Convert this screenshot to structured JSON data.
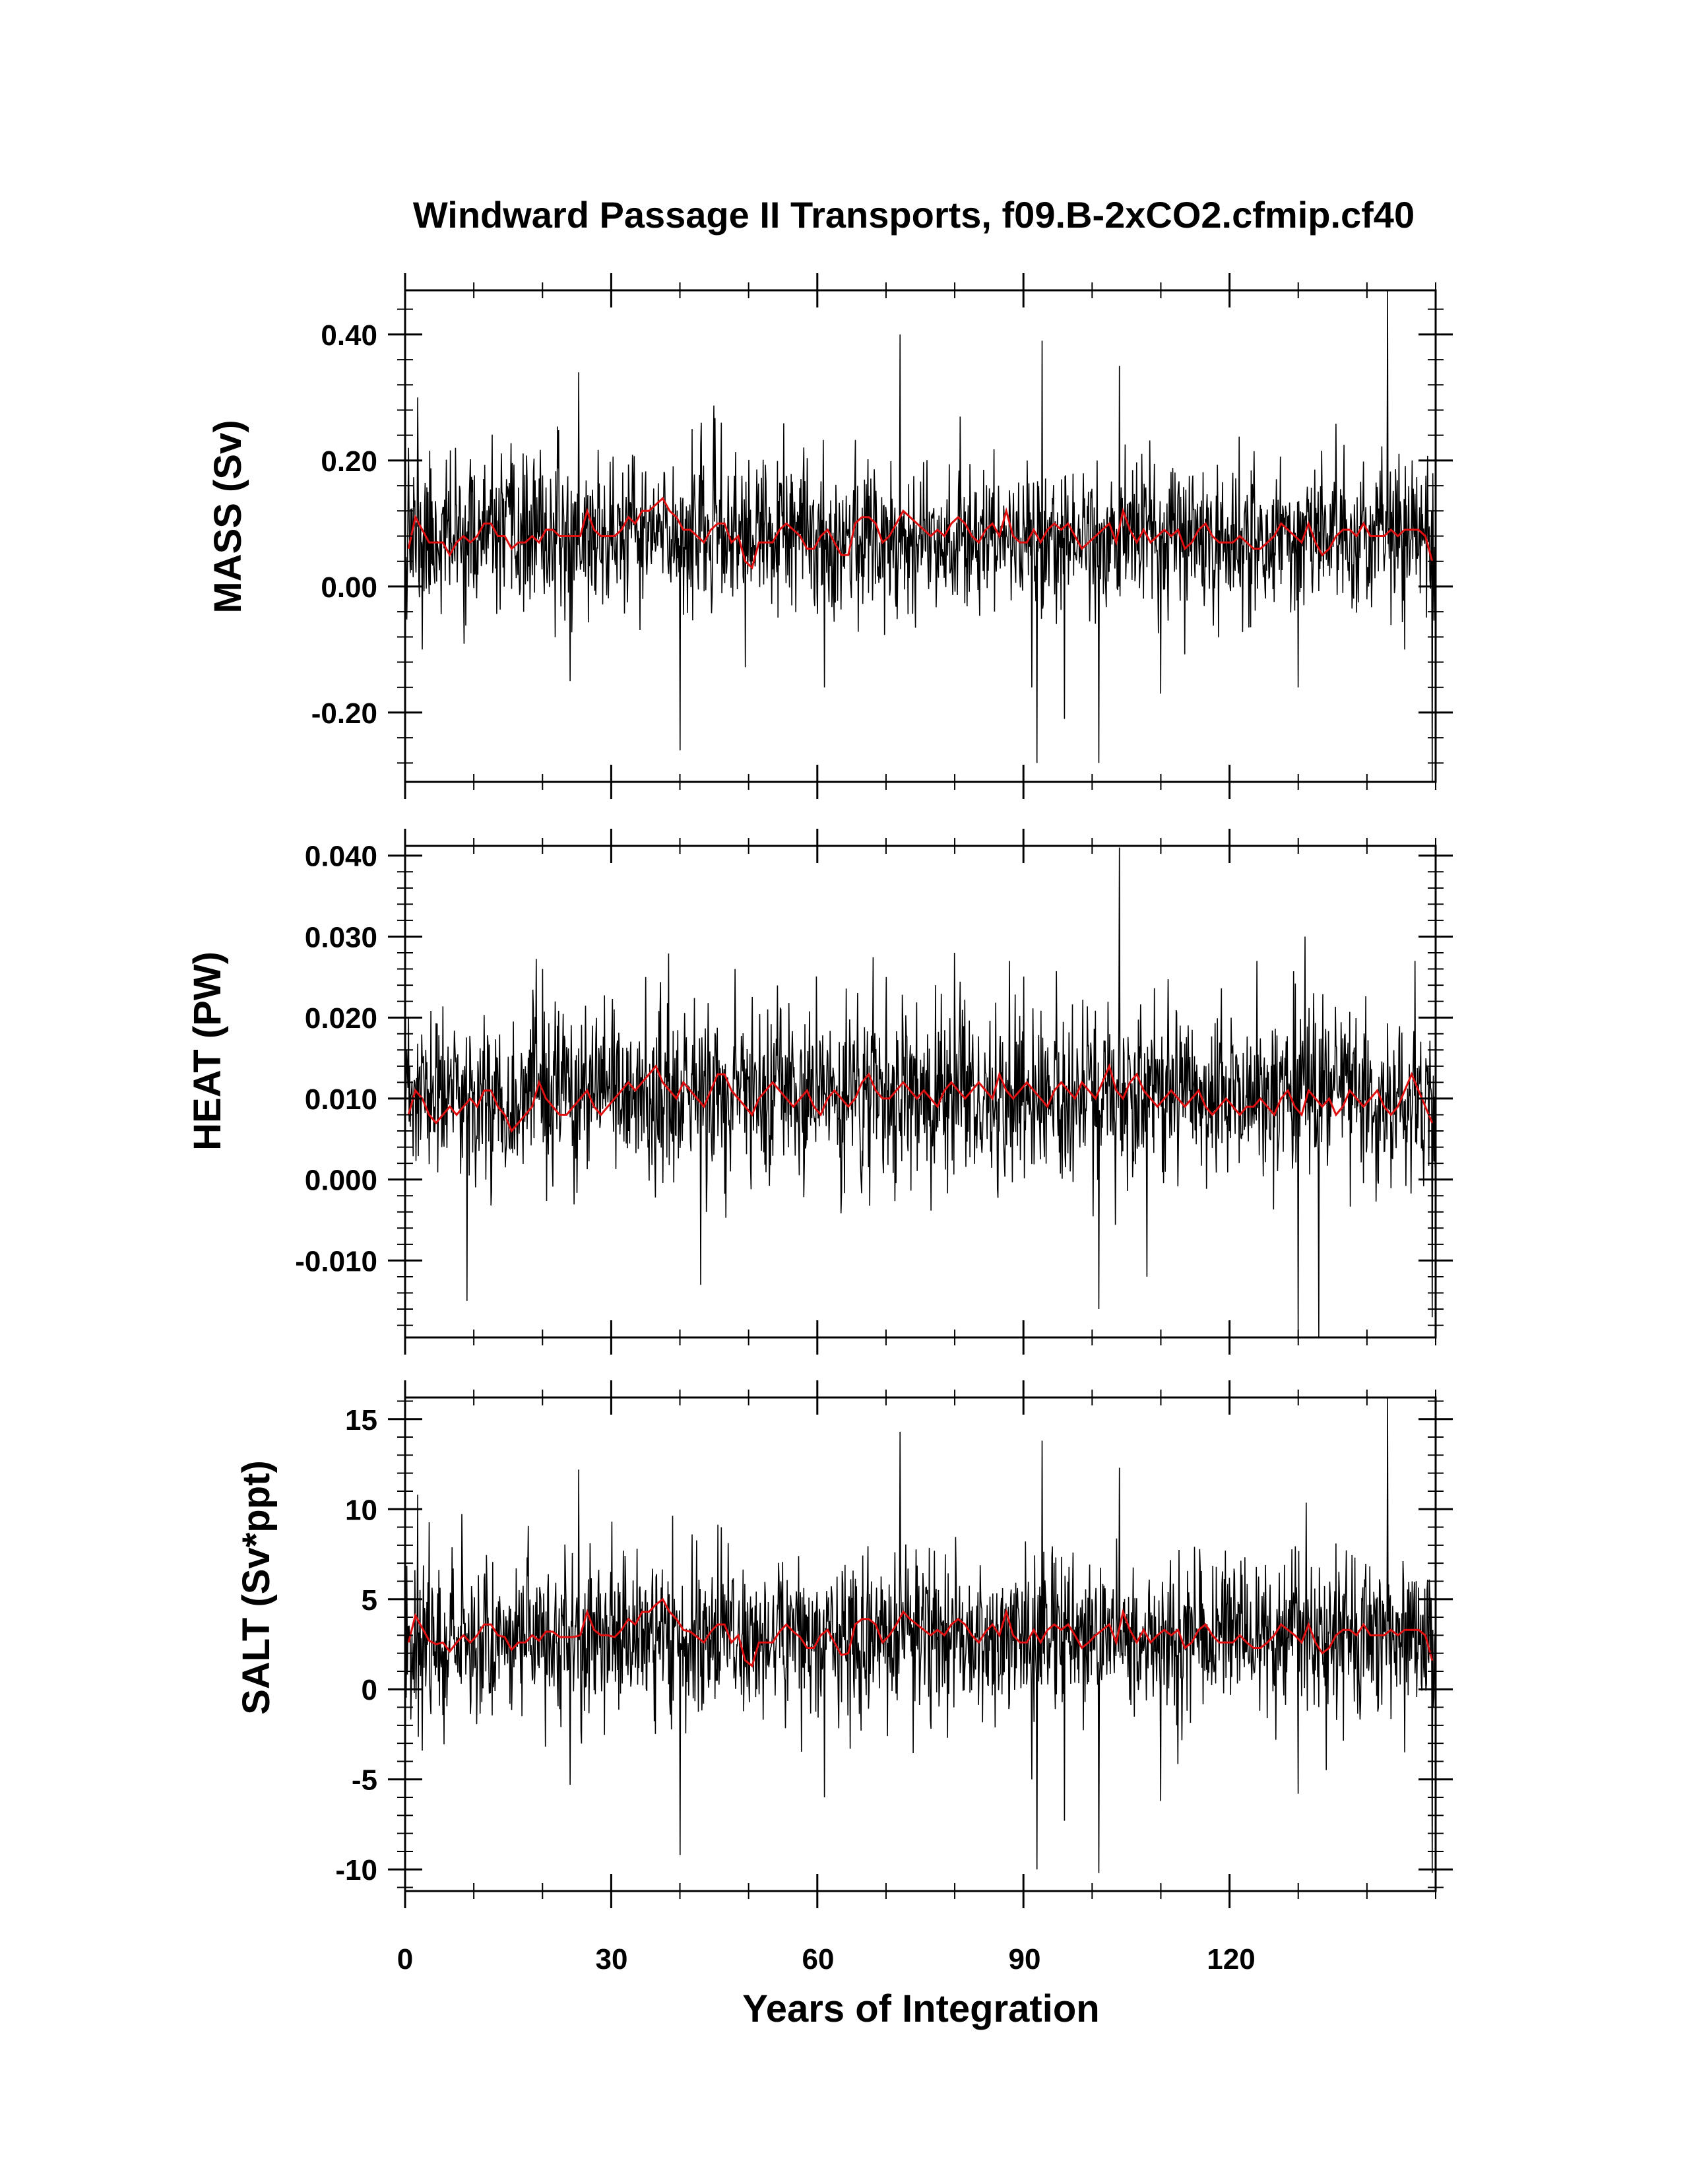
{
  "figure": {
    "title": "Windward Passage II Transports, f09.B-2xCO2.cfmip.cf40",
    "xlabel": "Years of Integration",
    "x_ticks": [
      "0",
      "30",
      "60",
      "90",
      "120"
    ]
  },
  "colors": {
    "raw": "#000000",
    "smoothed": "#e01010",
    "frame": "#000000"
  },
  "chart_data": [
    {
      "type": "line",
      "ylabel": "MASS (Sv)",
      "xlim": [
        0,
        150
      ],
      "ylim": [
        -0.31,
        0.47
      ],
      "x_ticks": [
        0,
        30,
        60,
        90,
        120
      ],
      "y_ticks": [
        -0.2,
        0,
        0.2,
        0.4
      ],
      "y_tick_labels": [
        "-0.20",
        "0.00",
        "0.20",
        "0.40"
      ],
      "raw": {
        "mean": 0.08,
        "sd": 0.06,
        "seed": 11,
        "n_points": 1800
      },
      "spikes": [
        [
          0.5,
          0.22
        ],
        [
          1.8,
          0.3
        ],
        [
          2.5,
          -0.1
        ],
        [
          25.3,
          0.34
        ],
        [
          24.0,
          -0.15
        ],
        [
          40.0,
          -0.26
        ],
        [
          41.8,
          0.25
        ],
        [
          46.0,
          0.26
        ],
        [
          61.0,
          -0.16
        ],
        [
          72.0,
          0.4
        ],
        [
          91.2,
          -0.16
        ],
        [
          92.0,
          -0.28
        ],
        [
          92.7,
          0.39
        ],
        [
          96.0,
          -0.21
        ],
        [
          101.0,
          -0.28
        ],
        [
          104.0,
          0.35
        ],
        [
          110.0,
          -0.17
        ],
        [
          130.0,
          -0.16
        ],
        [
          143.0,
          0.47
        ],
        [
          145.5,
          -0.1
        ],
        [
          149.5,
          -0.31
        ]
      ],
      "smoothed": [
        0.06,
        0.11,
        0.09,
        0.07,
        0.07,
        0.07,
        0.05,
        0.07,
        0.08,
        0.07,
        0.08,
        0.1,
        0.1,
        0.08,
        0.08,
        0.06,
        0.07,
        0.07,
        0.08,
        0.07,
        0.09,
        0.09,
        0.08,
        0.08,
        0.08,
        0.08,
        0.12,
        0.09,
        0.08,
        0.08,
        0.08,
        0.09,
        0.11,
        0.1,
        0.12,
        0.12,
        0.13,
        0.14,
        0.12,
        0.11,
        0.09,
        0.09,
        0.08,
        0.07,
        0.09,
        0.1,
        0.1,
        0.07,
        0.08,
        0.04,
        0.03,
        0.07,
        0.07,
        0.07,
        0.09,
        0.1,
        0.09,
        0.08,
        0.06,
        0.06,
        0.08,
        0.09,
        0.07,
        0.05,
        0.05,
        0.1,
        0.11,
        0.11,
        0.1,
        0.07,
        0.08,
        0.1,
        0.12,
        0.11,
        0.1,
        0.09,
        0.08,
        0.09,
        0.08,
        0.1,
        0.11,
        0.1,
        0.08,
        0.07,
        0.09,
        0.1,
        0.08,
        0.12,
        0.08,
        0.07,
        0.07,
        0.09,
        0.07,
        0.09,
        0.1,
        0.09,
        0.1,
        0.08,
        0.06,
        0.07,
        0.08,
        0.09,
        0.1,
        0.07,
        0.12,
        0.09,
        0.07,
        0.09,
        0.07,
        0.08,
        0.09,
        0.08,
        0.09,
        0.06,
        0.07,
        0.09,
        0.1,
        0.08,
        0.07,
        0.07,
        0.07,
        0.08,
        0.07,
        0.06,
        0.06,
        0.07,
        0.08,
        0.1,
        0.09,
        0.08,
        0.07,
        0.1,
        0.07,
        0.05,
        0.06,
        0.08,
        0.09,
        0.09,
        0.08,
        0.1,
        0.08,
        0.08,
        0.08,
        0.09,
        0.08,
        0.09,
        0.09,
        0.09,
        0.08,
        0.04
      ]
    },
    {
      "type": "line",
      "ylabel": "HEAT (PW)",
      "xlim": [
        0,
        150
      ],
      "ylim": [
        -0.0195,
        0.0412
      ],
      "x_ticks": [
        0,
        30,
        60,
        90,
        120
      ],
      "y_ticks": [
        -0.01,
        0,
        0.01,
        0.02,
        0.03,
        0.04
      ],
      "y_tick_labels": [
        "-0.010",
        "0.000",
        "0.010",
        "0.020",
        "0.030",
        "0.040"
      ],
      "raw": {
        "mean": 0.0102,
        "sd": 0.0052,
        "seed": 23,
        "n_points": 1800
      },
      "spikes": [
        [
          0.5,
          0.02
        ],
        [
          9.0,
          -0.015
        ],
        [
          20.0,
          0.026
        ],
        [
          35.0,
          0.025
        ],
        [
          43.0,
          -0.013
        ],
        [
          48.0,
          0.026
        ],
        [
          70.0,
          0.025
        ],
        [
          80.0,
          0.028
        ],
        [
          88.0,
          0.027
        ],
        [
          101.0,
          -0.016
        ],
        [
          104.0,
          0.041
        ],
        [
          108.0,
          -0.012
        ],
        [
          124.0,
          0.027
        ],
        [
          130.0,
          -0.0195
        ],
        [
          131.0,
          0.03
        ],
        [
          133.0,
          -0.0195
        ],
        [
          147.0,
          0.027
        ],
        [
          149.5,
          -0.017
        ]
      ],
      "smoothed": [
        0.008,
        0.011,
        0.01,
        0.008,
        0.007,
        0.008,
        0.009,
        0.008,
        0.009,
        0.01,
        0.009,
        0.011,
        0.011,
        0.009,
        0.008,
        0.006,
        0.007,
        0.008,
        0.009,
        0.012,
        0.01,
        0.009,
        0.008,
        0.008,
        0.009,
        0.01,
        0.011,
        0.009,
        0.008,
        0.009,
        0.01,
        0.011,
        0.012,
        0.011,
        0.012,
        0.013,
        0.014,
        0.012,
        0.011,
        0.01,
        0.012,
        0.011,
        0.01,
        0.009,
        0.011,
        0.013,
        0.013,
        0.011,
        0.01,
        0.009,
        0.008,
        0.01,
        0.011,
        0.012,
        0.011,
        0.01,
        0.009,
        0.01,
        0.011,
        0.009,
        0.008,
        0.01,
        0.011,
        0.01,
        0.009,
        0.01,
        0.012,
        0.013,
        0.011,
        0.01,
        0.01,
        0.011,
        0.012,
        0.011,
        0.01,
        0.011,
        0.01,
        0.009,
        0.011,
        0.012,
        0.011,
        0.01,
        0.011,
        0.012,
        0.011,
        0.01,
        0.013,
        0.011,
        0.01,
        0.011,
        0.012,
        0.011,
        0.01,
        0.009,
        0.011,
        0.012,
        0.011,
        0.01,
        0.012,
        0.011,
        0.01,
        0.012,
        0.014,
        0.011,
        0.01,
        0.012,
        0.013,
        0.011,
        0.01,
        0.009,
        0.01,
        0.011,
        0.01,
        0.009,
        0.01,
        0.011,
        0.009,
        0.008,
        0.009,
        0.01,
        0.009,
        0.008,
        0.009,
        0.009,
        0.01,
        0.009,
        0.008,
        0.01,
        0.011,
        0.009,
        0.008,
        0.011,
        0.01,
        0.009,
        0.01,
        0.008,
        0.009,
        0.011,
        0.01,
        0.009,
        0.01,
        0.011,
        0.009,
        0.008,
        0.009,
        0.011,
        0.013,
        0.011,
        0.009,
        0.007
      ]
    },
    {
      "type": "line",
      "ylabel": "SALT (Sv*ppt)",
      "xlim": [
        0,
        150
      ],
      "ylim": [
        -11.2,
        16.2
      ],
      "x_ticks": [
        0,
        30,
        60,
        90,
        120
      ],
      "y_ticks": [
        -10,
        -5,
        0,
        5,
        10,
        15
      ],
      "y_tick_labels": [
        "-10",
        "-5",
        "0",
        "5",
        "10",
        "15"
      ],
      "raw": {
        "mean": 2.9,
        "sd": 2.2,
        "seed": 37,
        "n_points": 1800
      },
      "spikes": [
        [
          1.8,
          10.8
        ],
        [
          2.5,
          -3.4
        ],
        [
          24.0,
          -5.3
        ],
        [
          25.3,
          12.2
        ],
        [
          40.0,
          -9.2
        ],
        [
          41.8,
          8.6
        ],
        [
          46.0,
          9.0
        ],
        [
          61.0,
          -6.0
        ],
        [
          72.0,
          14.3
        ],
        [
          91.2,
          -5.0
        ],
        [
          92.0,
          -10.0
        ],
        [
          92.7,
          13.8
        ],
        [
          96.0,
          -7.3
        ],
        [
          101.0,
          -10.2
        ],
        [
          104.0,
          12.3
        ],
        [
          110.0,
          -6.2
        ],
        [
          130.0,
          -5.8
        ],
        [
          143.0,
          16.2
        ],
        [
          145.5,
          -3.5
        ],
        [
          149.5,
          -10.2
        ]
      ],
      "smoothed": [
        2.6,
        4.1,
        3.4,
        2.7,
        2.5,
        2.6,
        2.1,
        2.6,
        3.0,
        2.6,
        3.0,
        3.6,
        3.6,
        3.0,
        2.9,
        2.2,
        2.6,
        2.6,
        3.0,
        2.7,
        3.2,
        3.2,
        2.9,
        2.9,
        2.9,
        3.0,
        4.3,
        3.3,
        3.0,
        3.0,
        2.9,
        3.3,
        3.9,
        3.6,
        4.3,
        4.3,
        4.7,
        5.0,
        4.3,
        3.9,
        3.3,
        3.2,
        2.9,
        2.6,
        3.2,
        3.6,
        3.6,
        2.6,
        3.0,
        1.6,
        1.3,
        2.6,
        2.6,
        2.6,
        3.2,
        3.6,
        3.2,
        2.9,
        2.3,
        2.3,
        3.0,
        3.3,
        2.6,
        1.9,
        2.0,
        3.6,
        3.9,
        3.9,
        3.6,
        2.6,
        3.0,
        3.6,
        4.3,
        3.9,
        3.6,
        3.3,
        3.0,
        3.3,
        3.0,
        3.6,
        3.9,
        3.6,
        3.0,
        2.6,
        3.2,
        3.6,
        3.0,
        4.3,
        3.0,
        2.6,
        2.6,
        3.3,
        2.6,
        3.3,
        3.6,
        3.3,
        3.6,
        3.0,
        2.3,
        2.6,
        3.0,
        3.3,
        3.6,
        2.6,
        4.3,
        3.3,
        2.6,
        3.3,
        2.6,
        3.0,
        3.3,
        3.0,
        3.3,
        2.3,
        2.6,
        3.3,
        3.6,
        3.0,
        2.6,
        2.6,
        2.6,
        3.0,
        2.6,
        2.3,
        2.3,
        2.6,
        3.0,
        3.6,
        3.3,
        3.0,
        2.6,
        3.6,
        2.6,
        2.0,
        2.3,
        3.0,
        3.3,
        3.3,
        3.0,
        3.6,
        3.0,
        3.0,
        3.0,
        3.3,
        3.0,
        3.3,
        3.3,
        3.3,
        3.0,
        1.6
      ]
    }
  ]
}
